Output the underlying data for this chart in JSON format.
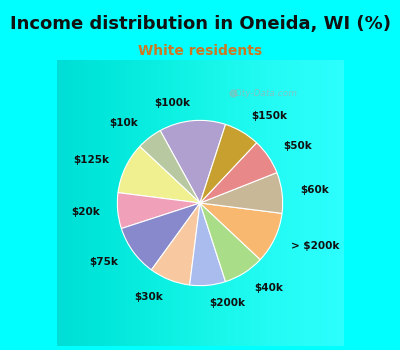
{
  "title": "Income distribution in Oneida, WI (%)",
  "subtitle": "White residents",
  "title_color": "#111111",
  "subtitle_color": "#cc7722",
  "background_fig": "#00ffff",
  "background_chart": "#e0f0e8",
  "watermark": "City-Data.com",
  "labels": [
    "$100k",
    "$10k",
    "$125k",
    "$20k",
    "$75k",
    "$30k",
    "$200k",
    "$40k",
    "> $200k",
    "$60k",
    "$50k",
    "$150k"
  ],
  "values": [
    13,
    5,
    10,
    7,
    10,
    8,
    7,
    8,
    10,
    8,
    7,
    7
  ],
  "colors": [
    "#b0a0d0",
    "#b8c8a0",
    "#f0f090",
    "#f0a0b8",
    "#8888cc",
    "#f8c8a0",
    "#aabbee",
    "#aadd88",
    "#f8b870",
    "#c8b898",
    "#e88888",
    "#c8a030"
  ],
  "label_fontsize": 7.5,
  "title_fontsize": 13,
  "subtitle_fontsize": 10,
  "startangle": 72,
  "labeldistance": 1.22
}
